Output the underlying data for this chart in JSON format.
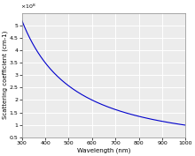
{
  "title": "",
  "xlabel": "Wavelength (nm)",
  "ylabel": "Scattering coefficient (cm-1)",
  "xlim": [
    300,
    1000
  ],
  "ylim": [
    50000000.0,
    550000000.0
  ],
  "yticks": [
    50000000.0,
    100000000.0,
    150000000.0,
    200000000.0,
    250000000.0,
    300000000.0,
    350000000.0,
    400000000.0,
    450000000.0,
    500000000.0
  ],
  "xticks": [
    300,
    400,
    500,
    600,
    700,
    800,
    900,
    1000
  ],
  "line_color": "#0000cc",
  "line_width": 0.8,
  "background_color": "#ececec",
  "grid_color": "#ffffff",
  "x_start": 300,
  "x_end": 1000,
  "amplitude": 520000000.0,
  "power": 1.38,
  "ref_wavelength": 300
}
